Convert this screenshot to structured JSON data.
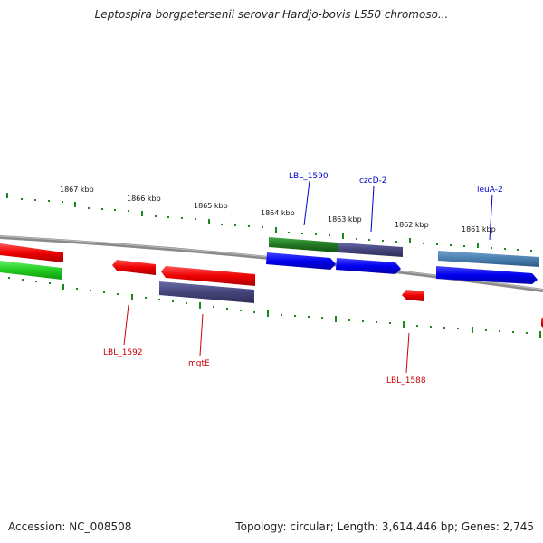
{
  "title": "Leptospira borgpetersenii serovar Hardjo-bovis L550 chromoso...",
  "footer": {
    "accession": "Accession: NC_008508",
    "summary": "Topology: circular; Length: 3,614,446 bp; Genes: 2,745"
  },
  "scale_labels": [
    "1867 kbp",
    "1866 kbp",
    "1865 kbp",
    "1864 kbp",
    "1863 kbp",
    "1862 kbp",
    "1861 kbp"
  ],
  "gene_labels_top": [
    "LBL_1590",
    "czcD-2",
    "leuA-2"
  ],
  "gene_labels_bottom": [
    "LBL_1592",
    "mgtE",
    "LBL_1588"
  ],
  "colors": {
    "tick_green": "#1a8a1a",
    "backbone": "#888888",
    "label_blue": "#0000cc",
    "label_red": "#cc0000"
  }
}
